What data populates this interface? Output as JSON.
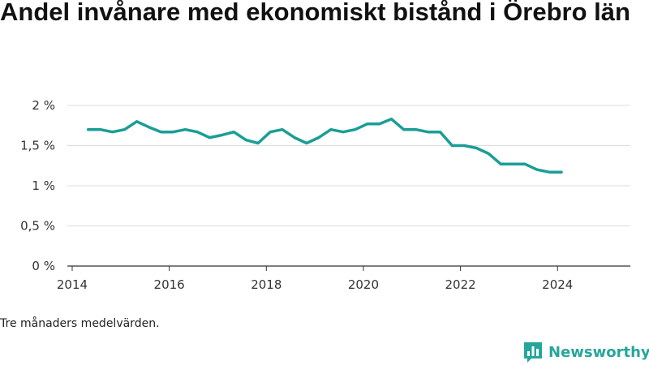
{
  "title": "Andel invånare med ekonomiskt bistånd i Örebro län",
  "note": "Tre månaders medelvärden.",
  "brand": {
    "name": "Newsworthy",
    "color": "#26a69a",
    "icon": "bar-chart-badge-icon"
  },
  "chart_data": {
    "type": "line",
    "title": "Andel invånare med ekonomiskt bistånd i Örebro län",
    "xlabel": "",
    "ylabel": "",
    "xlim": [
      2013.9,
      2025.5
    ],
    "ylim": [
      0,
      2
    ],
    "x_ticks": [
      2014,
      2016,
      2018,
      2020,
      2022,
      2024
    ],
    "y_ticks": [
      {
        "value": 0,
        "label": "0 %"
      },
      {
        "value": 0.5,
        "label": "0,5 %"
      },
      {
        "value": 1,
        "label": "1 %"
      },
      {
        "value": 1.5,
        "label": "1,5 %"
      },
      {
        "value": 2,
        "label": "2 %"
      }
    ],
    "grid": "horizontal",
    "series": [
      {
        "color": "#1a9e96",
        "x": [
          2014.33,
          2014.58,
          2014.83,
          2015.08,
          2015.33,
          2015.58,
          2015.83,
          2016.08,
          2016.33,
          2016.58,
          2016.83,
          2017.08,
          2017.33,
          2017.58,
          2017.83,
          2018.08,
          2018.33,
          2018.58,
          2018.83,
          2019.08,
          2019.33,
          2019.58,
          2019.83,
          2020.08,
          2020.33,
          2020.58,
          2020.83,
          2021.08,
          2021.33,
          2021.58,
          2021.83,
          2022.08,
          2022.33,
          2022.58,
          2022.83,
          2023.08,
          2023.33,
          2023.58,
          2023.83,
          2024.08
        ],
        "values": [
          1.7,
          1.7,
          1.67,
          1.7,
          1.8,
          1.73,
          1.67,
          1.67,
          1.7,
          1.67,
          1.6,
          1.63,
          1.67,
          1.57,
          1.53,
          1.67,
          1.7,
          1.6,
          1.53,
          1.6,
          1.7,
          1.67,
          1.7,
          1.77,
          1.77,
          1.83,
          1.7,
          1.7,
          1.67,
          1.67,
          1.5,
          1.5,
          1.47,
          1.4,
          1.27,
          1.27,
          1.27,
          1.2,
          1.17,
          1.17
        ]
      }
    ]
  }
}
